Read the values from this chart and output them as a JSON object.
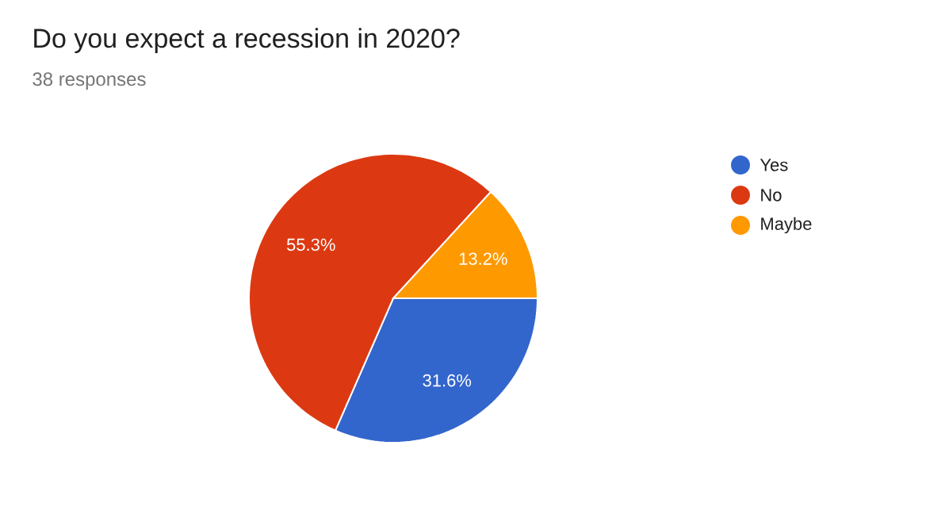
{
  "chart_data": {
    "type": "pie",
    "title": "Do you expect a recession in 2020?",
    "subtitle": "38 responses",
    "categories": [
      "Yes",
      "No",
      "Maybe"
    ],
    "values": [
      31.6,
      55.3,
      13.2
    ],
    "value_labels": [
      "31.6%",
      "55.3%",
      "13.2%"
    ],
    "colors": [
      "#3366cc",
      "#dc3912",
      "#ff9900"
    ],
    "legend": "right"
  }
}
